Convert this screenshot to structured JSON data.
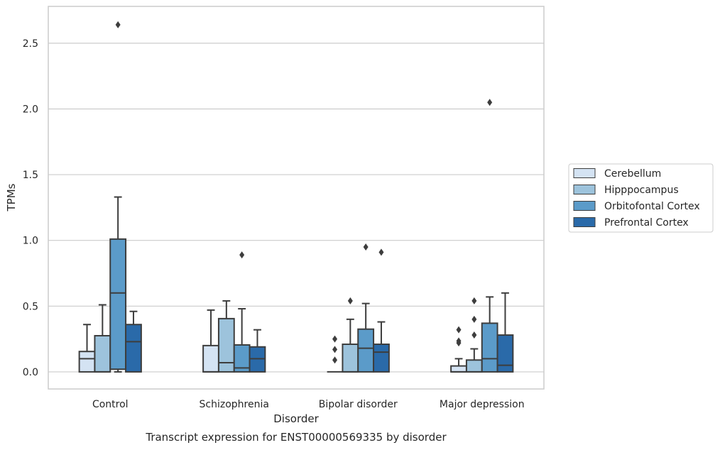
{
  "chart_data": {
    "type": "boxplot",
    "caption": "Transcript expression for ENST00000569335 by disorder",
    "xlabel": "Disorder",
    "ylabel": "TPMs",
    "ylim": [
      -0.13,
      2.78
    ],
    "yticks": [
      "0.0",
      "0.5",
      "1.0",
      "1.5",
      "2.0",
      "2.5"
    ],
    "grid": "horizontal",
    "legend_position": "right",
    "categories": [
      "Control",
      "Schizophrenia",
      "Bipolar disorder",
      "Major depression"
    ],
    "series": [
      {
        "name": "Cerebellum",
        "color": "#d4e3f3",
        "boxes": [
          {
            "whislo": 0.0,
            "q1": 0.0,
            "med": 0.1,
            "q3": 0.155,
            "whishi": 0.36,
            "fliers": []
          },
          {
            "whislo": 0.0,
            "q1": 0.0,
            "med": 0.0,
            "q3": 0.2,
            "whishi": 0.47,
            "fliers": []
          },
          {
            "whislo": 0.0,
            "q1": 0.0,
            "med": 0.0,
            "q3": 0.0,
            "whishi": 0.0,
            "fliers": [
              0.09,
              0.17,
              0.25
            ]
          },
          {
            "whislo": 0.0,
            "q1": 0.0,
            "med": 0.0,
            "q3": 0.045,
            "whishi": 0.1,
            "fliers": [
              0.22,
              0.235,
              0.32
            ]
          }
        ]
      },
      {
        "name": "Hipppocampus",
        "color": "#9dc3dc",
        "boxes": [
          {
            "whislo": 0.0,
            "q1": 0.0,
            "med": 0.0,
            "q3": 0.275,
            "whishi": 0.51,
            "fliers": []
          },
          {
            "whislo": 0.0,
            "q1": 0.0,
            "med": 0.07,
            "q3": 0.405,
            "whishi": 0.54,
            "fliers": []
          },
          {
            "whislo": 0.0,
            "q1": 0.0,
            "med": 0.0,
            "q3": 0.21,
            "whishi": 0.4,
            "fliers": [
              0.54
            ]
          },
          {
            "whislo": 0.0,
            "q1": 0.0,
            "med": 0.0,
            "q3": 0.09,
            "whishi": 0.175,
            "fliers": [
              0.28,
              0.4,
              0.54
            ]
          }
        ]
      },
      {
        "name": "Orbitofontal Cortex",
        "color": "#5b9bc9",
        "boxes": [
          {
            "whislo": 0.0,
            "q1": 0.02,
            "med": 0.6,
            "q3": 1.01,
            "whishi": 1.33,
            "fliers": [
              2.64
            ]
          },
          {
            "whislo": 0.0,
            "q1": 0.0,
            "med": 0.03,
            "q3": 0.205,
            "whishi": 0.48,
            "fliers": [
              0.89
            ]
          },
          {
            "whislo": 0.0,
            "q1": 0.0,
            "med": 0.18,
            "q3": 0.325,
            "whishi": 0.52,
            "fliers": [
              0.95
            ]
          },
          {
            "whislo": 0.0,
            "q1": 0.0,
            "med": 0.1,
            "q3": 0.37,
            "whishi": 0.57,
            "fliers": [
              2.05
            ]
          }
        ]
      },
      {
        "name": "Prefrontal Cortex",
        "color": "#2a6aa9",
        "boxes": [
          {
            "whislo": 0.0,
            "q1": 0.0,
            "med": 0.23,
            "q3": 0.36,
            "whishi": 0.46,
            "fliers": []
          },
          {
            "whislo": 0.0,
            "q1": 0.0,
            "med": 0.1,
            "q3": 0.19,
            "whishi": 0.32,
            "fliers": []
          },
          {
            "whislo": 0.0,
            "q1": 0.0,
            "med": 0.15,
            "q3": 0.21,
            "whishi": 0.38,
            "fliers": [
              0.91
            ]
          },
          {
            "whislo": 0.0,
            "q1": 0.0,
            "med": 0.05,
            "q3": 0.28,
            "whishi": 0.6,
            "fliers": []
          }
        ]
      }
    ]
  }
}
